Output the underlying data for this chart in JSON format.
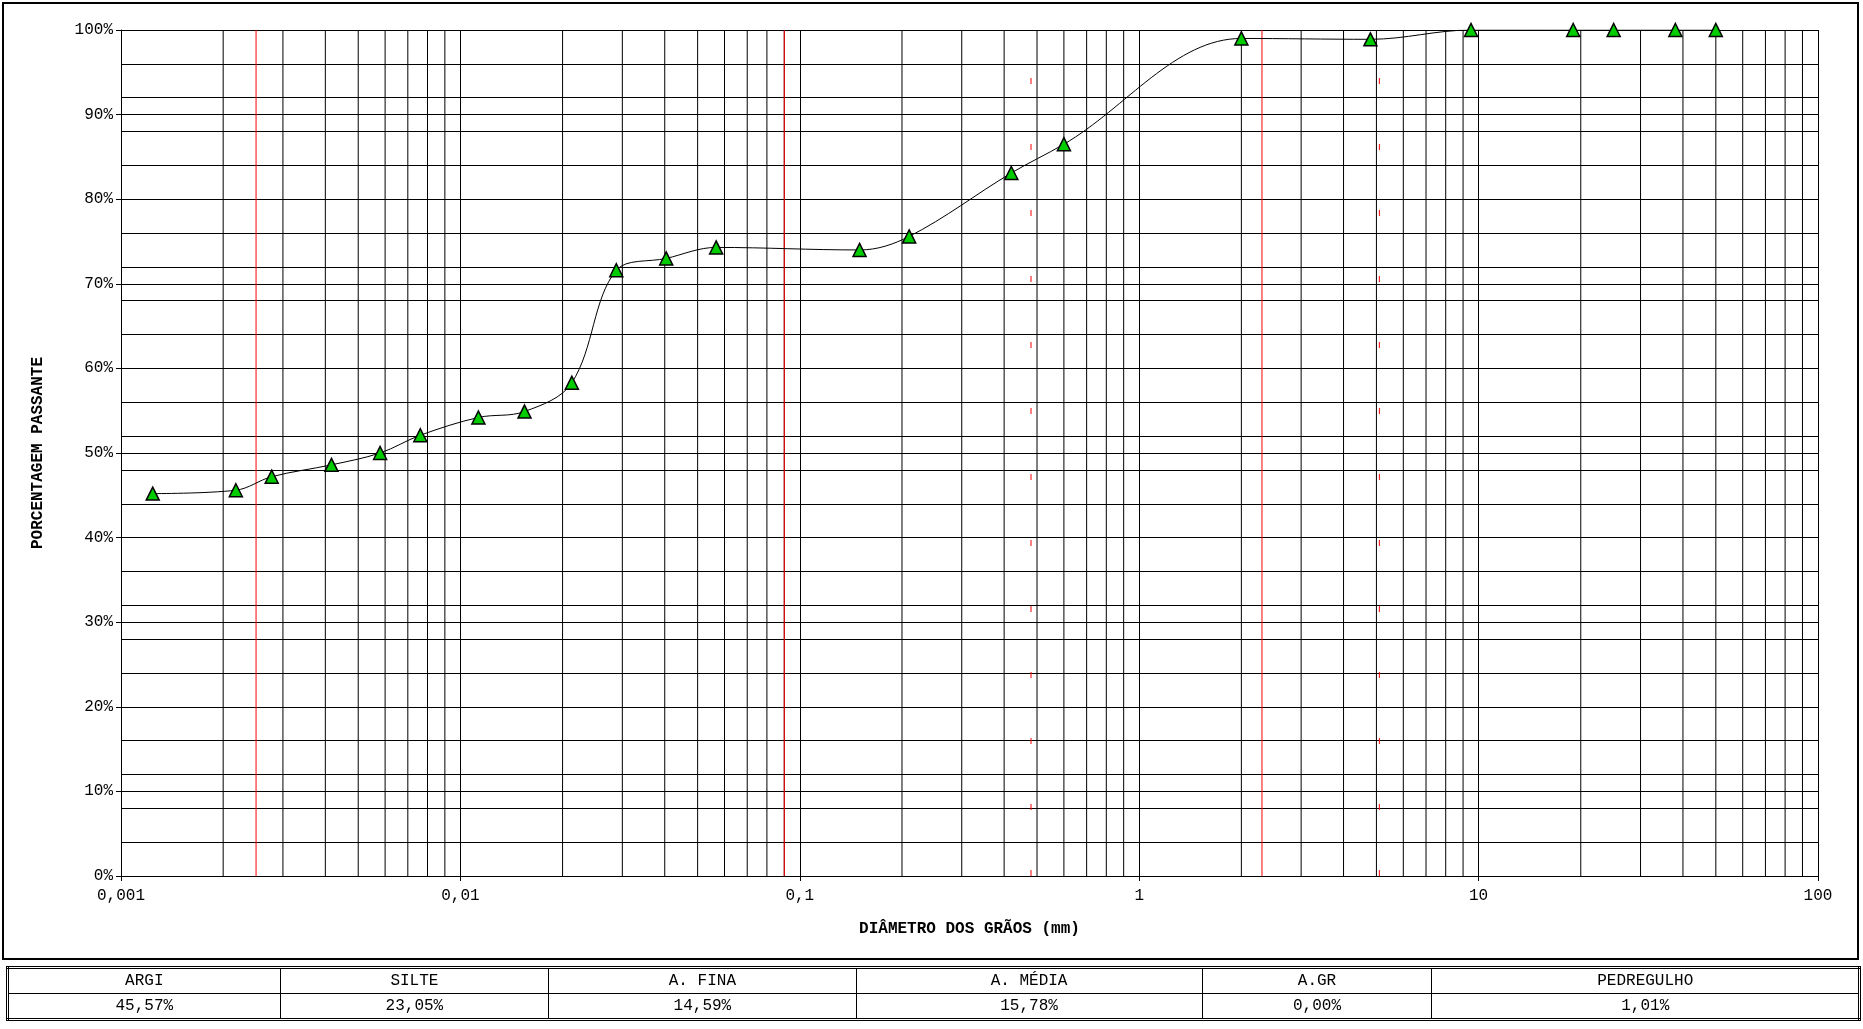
{
  "chart_data": {
    "type": "line",
    "xlabel": "DIÂMETRO DOS GRÃOS (mm)",
    "ylabel": "PORCENTAGEM PASSANTE",
    "log": "x",
    "grid": true,
    "marker": "triangle",
    "line_style": "solid",
    "xlim": [
      0.001,
      100
    ],
    "xticks": [
      {
        "value": 0.001,
        "label": "0,001"
      },
      {
        "value": 0.01,
        "label": "0,01"
      },
      {
        "value": 0.1,
        "label": "0,1"
      },
      1,
      10,
      100
    ],
    "ylim": [
      0,
      100
    ],
    "yticks": [
      {
        "value": 0,
        "label": "0%"
      },
      {
        "value": 10,
        "label": "10%"
      },
      {
        "value": 20,
        "label": "20%"
      },
      {
        "value": 30,
        "label": "30%"
      },
      {
        "value": 40,
        "label": "40%"
      },
      {
        "value": 50,
        "label": "50%"
      },
      {
        "value": 60,
        "label": "60%"
      },
      {
        "value": 70,
        "label": "70%"
      },
      {
        "value": 80,
        "label": "80%"
      },
      {
        "value": 90,
        "label": "90%"
      },
      {
        "value": 100,
        "label": "100%"
      }
    ],
    "series": [
      {
        "color": "#00cc00",
        "x": [
          0.00124,
          0.00218,
          0.00278,
          0.00417,
          0.0058,
          0.00762,
          0.0113,
          0.01545,
          0.0213,
          0.0288,
          0.0404,
          0.0567,
          0.15,
          0.21,
          0.42,
          0.6,
          2.0,
          4.8,
          9.5,
          19,
          25,
          38,
          50
        ],
        "values": [
          45.2,
          45.6,
          47.2,
          48.6,
          50.0,
          52.1,
          54.2,
          54.9,
          58.3,
          71.6,
          73.0,
          74.3,
          74.0,
          75.6,
          83.1,
          86.5,
          99.0,
          98.9,
          100,
          100,
          100,
          100,
          100
        ]
      }
    ],
    "ref_lines": [
      {
        "axis": "x",
        "value": 0.0025,
        "color": "#ff0000",
        "line_style": "solid"
      },
      {
        "axis": "x",
        "value": 0.09,
        "color": "#ff0000",
        "line_style": "solid"
      },
      {
        "axis": "x",
        "value": 0.48,
        "color": "#ff0000",
        "line_style": "dashed"
      },
      {
        "axis": "x",
        "value": 2.3,
        "color": "#ff0000",
        "line_style": "solid"
      },
      {
        "axis": "x",
        "value": 5.1,
        "color": "#ff0000",
        "line_style": "dashed"
      }
    ],
    "annotations": [
      "ARGI",
      "SILTE",
      "A. FINA",
      "A. MÉDIA",
      "A.GR",
      "PEDREGULHO",
      "45,57%",
      "23,05%",
      "14,59%",
      "15,78%",
      "0,00%",
      "1,01%"
    ]
  }
}
